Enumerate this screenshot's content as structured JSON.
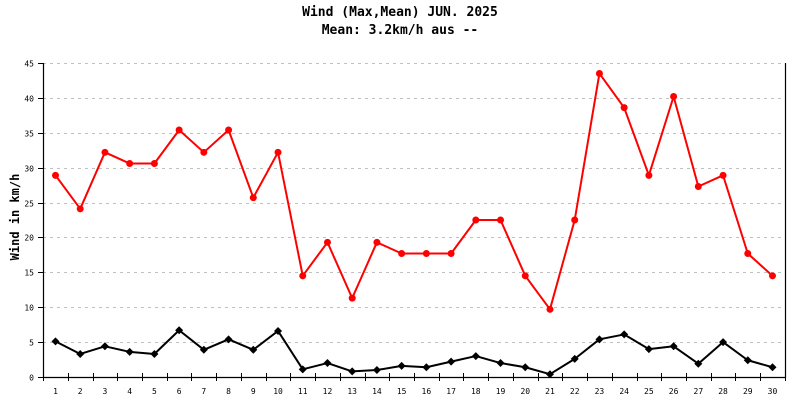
{
  "header": {
    "title": "Wind (Max,Mean) JUN. 2025",
    "subtitle": "Mean: 3.2km/h aus --"
  },
  "colors": {
    "max_series": "#ff0000",
    "mean_series": "#000000",
    "grid": "#c0c0c0",
    "axis": "#000000"
  },
  "chart_data": {
    "type": "line",
    "title": "Wind (Max,Mean) JUN. 2025",
    "subtitle": "Mean: 3.2km/h aus --",
    "xlabel": "",
    "ylabel": "Wind in km/h",
    "ylim": [
      0,
      45
    ],
    "yticks": [
      0,
      5,
      10,
      15,
      20,
      25,
      30,
      35,
      40,
      45
    ],
    "grid": true,
    "legend": null,
    "categories": [
      "1",
      "2",
      "3",
      "4",
      "5",
      "6",
      "7",
      "8",
      "9",
      "10",
      "11",
      "12",
      "13",
      "14",
      "15",
      "16",
      "17",
      "18",
      "19",
      "20",
      "21",
      "22",
      "23",
      "24",
      "25",
      "26",
      "27",
      "28",
      "29",
      "30"
    ],
    "series": [
      {
        "name": "Max",
        "color": "#ff0000",
        "marker": "circle",
        "values": [
          28.9,
          24.1,
          32.2,
          30.6,
          30.6,
          35.4,
          32.2,
          35.4,
          25.7,
          32.2,
          14.5,
          19.3,
          11.3,
          19.3,
          17.7,
          17.7,
          17.7,
          22.5,
          22.5,
          14.5,
          9.7,
          22.5,
          43.5,
          38.6,
          28.9,
          40.2,
          27.3,
          28.9,
          17.7,
          14.5
        ]
      },
      {
        "name": "Mean",
        "color": "#000000",
        "marker": "diamond",
        "values": [
          5.1,
          3.3,
          4.4,
          3.6,
          3.3,
          6.7,
          3.9,
          5.4,
          3.9,
          6.6,
          1.1,
          2.0,
          0.8,
          1.0,
          1.6,
          1.4,
          2.2,
          3.0,
          2.0,
          1.4,
          0.4,
          2.6,
          5.4,
          6.1,
          4.0,
          4.4,
          1.9,
          5.0,
          2.4,
          1.4
        ]
      }
    ]
  }
}
